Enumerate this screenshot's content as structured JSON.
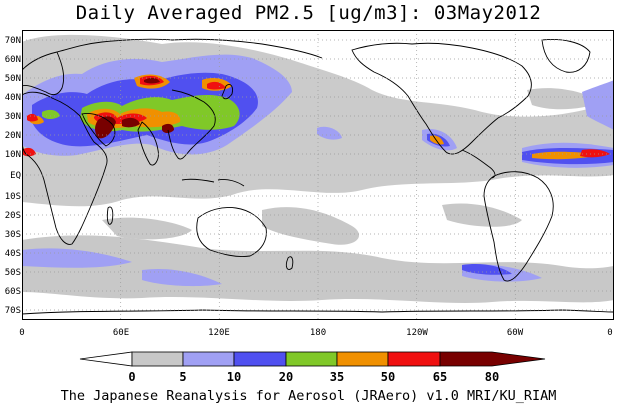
{
  "title": "Daily Averaged PM2.5 [ug/m3]: 03May2012",
  "footer": "The Japanese Reanalysis for Aerosol (JRAero) v1.0 MRI/KU_RIAM",
  "map": {
    "lat_labels": [
      "70N",
      "60N",
      "50N",
      "40N",
      "30N",
      "20N",
      "10N",
      "EQ",
      "10S",
      "20S",
      "30S",
      "40S",
      "50S",
      "60S",
      "70S"
    ],
    "lon_labels": [
      "0",
      "60E",
      "120E",
      "180",
      "120W",
      "60W",
      "0"
    ]
  },
  "colorbar": {
    "levels": [
      "0",
      "5",
      "10",
      "20",
      "35",
      "50",
      "65",
      "80"
    ],
    "colors": [
      "#ffffff",
      "#c8c8c8",
      "#a0a0f4",
      "#5050f0",
      "#80c828",
      "#f09000",
      "#f01010",
      "#780000"
    ]
  },
  "colors": {
    "background": "#ffffff",
    "land_outline": "#000000",
    "grid": "#9a9a9a"
  }
}
